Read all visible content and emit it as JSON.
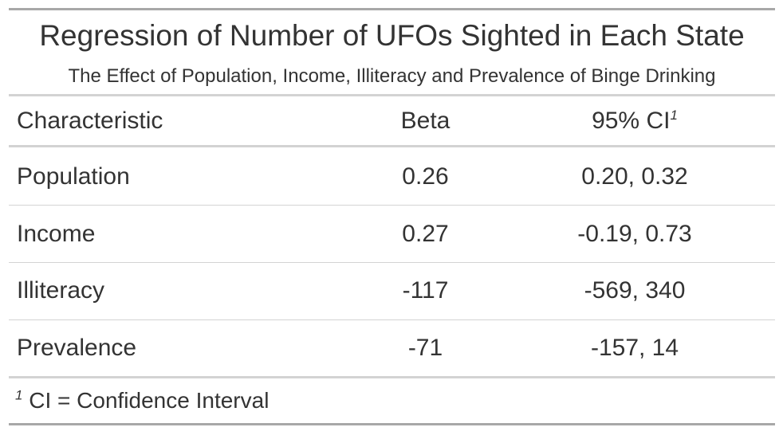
{
  "table": {
    "title": "Regression of Number of UFOs Sighted in Each State",
    "subtitle": "The Effect of Population, Income, Illiteracy and Prevalence of Binge Drinking",
    "columns": {
      "characteristic": "Characteristic",
      "beta": "Beta",
      "ci": "95% CI",
      "ci_footnote_mark": "1"
    },
    "rows": [
      {
        "characteristic": "Population",
        "beta": "0.26",
        "ci": "0.20, 0.32"
      },
      {
        "characteristic": "Income",
        "beta": "0.27",
        "ci": "-0.19, 0.73"
      },
      {
        "characteristic": "Illiteracy",
        "beta": "-117",
        "ci": "-569, 340"
      },
      {
        "characteristic": "Prevalence",
        "beta": "-71",
        "ci": "-157, 14"
      }
    ],
    "footnote": {
      "mark": "1",
      "text": "CI = Confidence Interval"
    }
  }
}
